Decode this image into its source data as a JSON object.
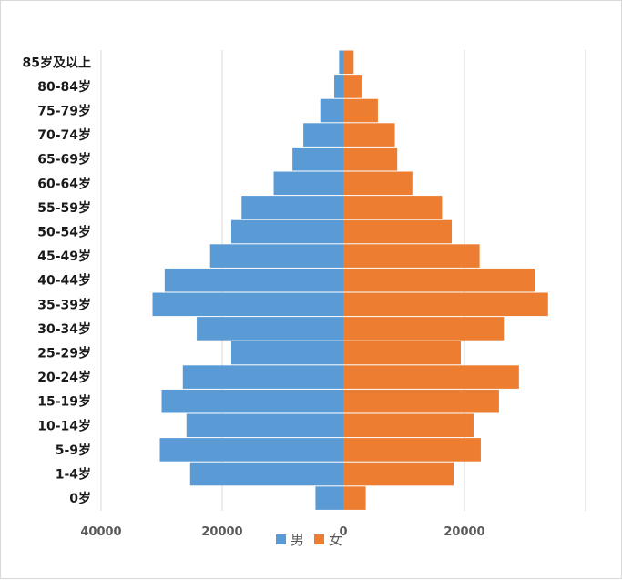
{
  "chart_data": {
    "type": "bar",
    "orientation": "horizontal",
    "categories": [
      "85岁及以上",
      "80-84岁",
      "75-79岁",
      "70-74岁",
      "65-69岁",
      "60-64岁",
      "55-59岁",
      "50-54岁",
      "45-49岁",
      "40-44岁",
      "35-39岁",
      "30-34岁",
      "25-29岁",
      "20-24岁",
      "15-19岁",
      "10-14岁",
      "5-9岁",
      "1-4岁",
      "0岁"
    ],
    "series": [
      {
        "name": "男",
        "color": "#5b9bd5",
        "values": [
          700,
          1500,
          3800,
          6600,
          8400,
          11500,
          16800,
          18500,
          22000,
          29500,
          31500,
          24200,
          18500,
          26500,
          30000,
          25900,
          30300,
          25300,
          4600
        ]
      },
      {
        "name": "女",
        "color": "#ed7d31",
        "values": [
          1700,
          3000,
          5700,
          8500,
          8900,
          11400,
          16300,
          17900,
          22500,
          31600,
          33800,
          26500,
          19400,
          29000,
          25700,
          21500,
          22700,
          18200,
          3700
        ]
      }
    ],
    "x_tick_labels": [
      "40000",
      "20000",
      "0",
      "20000",
      ""
    ],
    "xlim": [
      -40000,
      40000
    ],
    "grid": "vertical",
    "legend_position": "bottom"
  }
}
